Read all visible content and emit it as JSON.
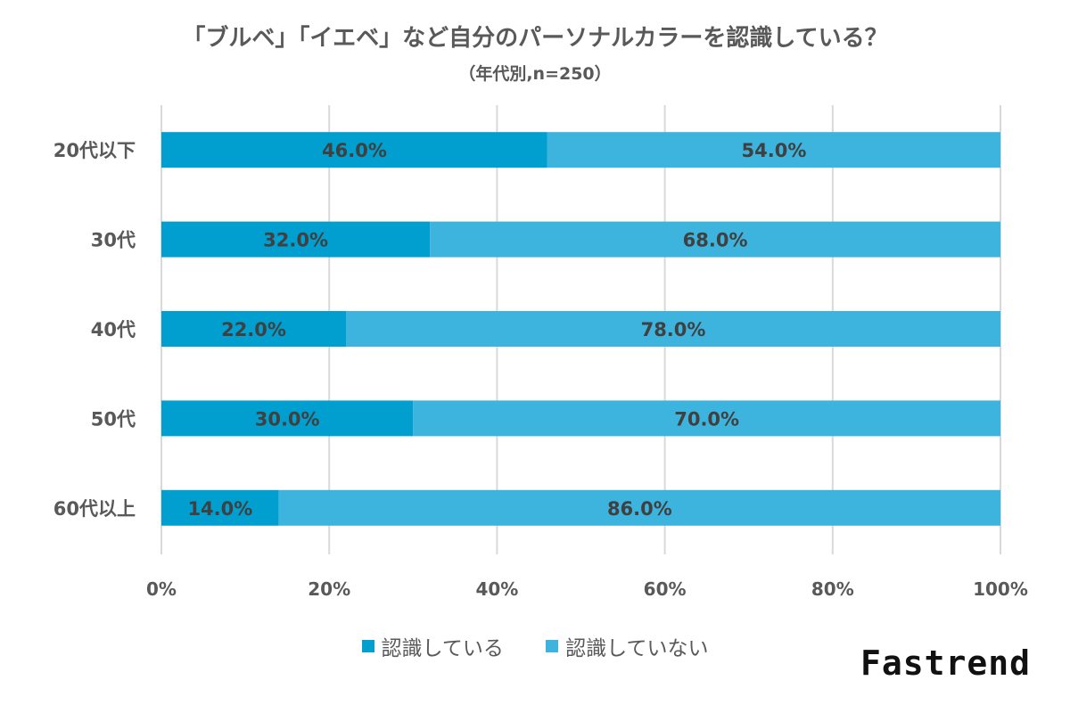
{
  "chart_data": {
    "type": "bar",
    "orientation": "horizontal",
    "stacked": true,
    "title": "「ブルベ」「イエベ」など自分のパーソナルカラーを認識している？",
    "subtitle": "（年代別,n=250）",
    "categories": [
      "20代以下",
      "30代",
      "40代",
      "50代",
      "60代以上"
    ],
    "series": [
      {
        "name": "認識している",
        "values": [
          46.0,
          32.0,
          22.0,
          30.0,
          14.0
        ],
        "color": "#009fd0"
      },
      {
        "name": "認識していない",
        "values": [
          54.0,
          68.0,
          78.0,
          70.0,
          86.0
        ],
        "color": "#3db4de"
      }
    ],
    "xlim": [
      0,
      100
    ],
    "x_ticks": [
      "0%",
      "20%",
      "40%",
      "60%",
      "80%",
      "100%"
    ],
    "value_format": "percent_1dp",
    "grid": true,
    "legend_position": "bottom"
  },
  "brand": "Fastrend"
}
